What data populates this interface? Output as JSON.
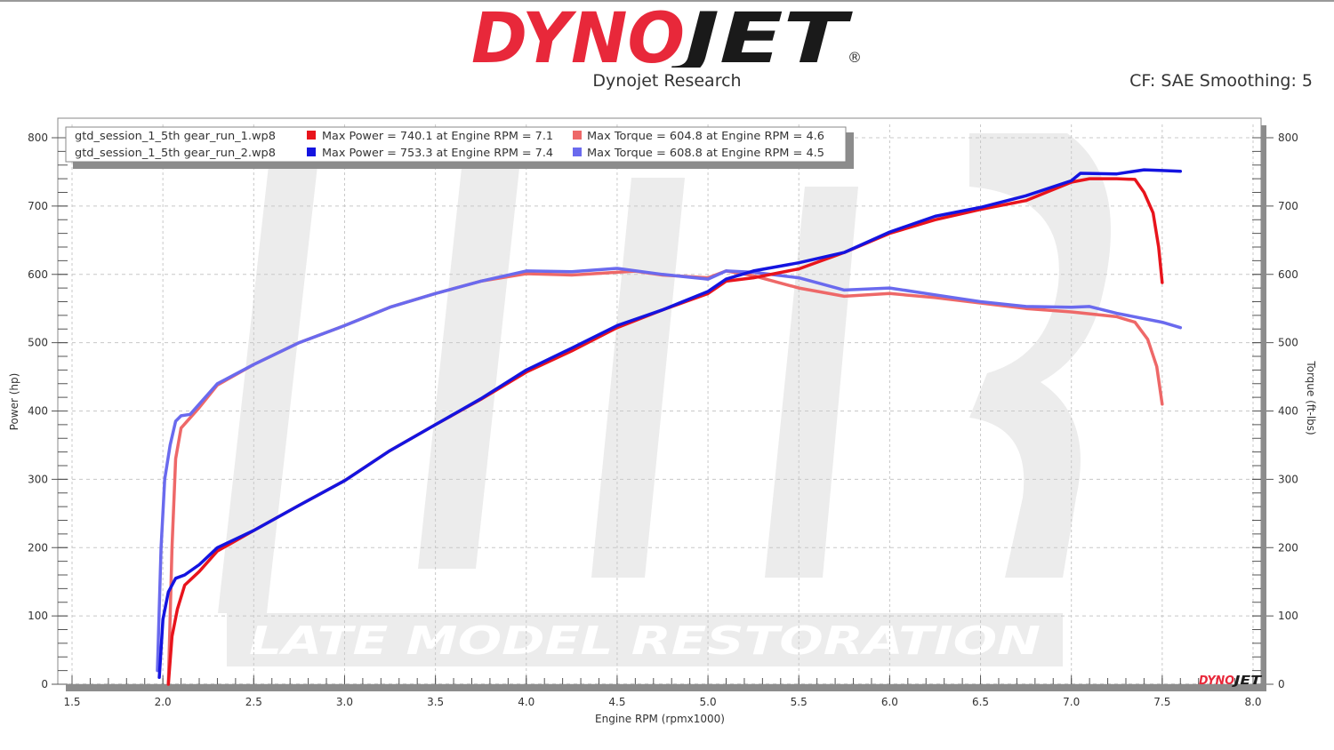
{
  "header": {
    "brand_left": "DYNO",
    "brand_right": "JET",
    "registered": "®",
    "subtitle": "Dynojet Research",
    "correction": "CF: SAE Smoothing: 5"
  },
  "colors": {
    "brand_red": "#e8283a",
    "brand_black": "#1a1a1a",
    "run1_power": "#e8141c",
    "run2_power": "#1414e0",
    "run1_torque": "#ee6868",
    "run2_torque": "#6a6aee"
  },
  "legend": {
    "rows": [
      {
        "file": "gtd_session_1_5th gear_run_1.wp8",
        "power": "Max Power = 740.1 at Engine RPM = 7.1",
        "torque": "Max Torque = 604.8 at Engine RPM = 4.6"
      },
      {
        "file": "gtd_session_1_5th gear_run_2.wp8",
        "power": "Max Power = 753.3 at Engine RPM = 7.4",
        "torque": "Max Torque = 608.8 at Engine RPM = 4.5"
      }
    ]
  },
  "watermark": {
    "text": "LATE MODEL RESTORATION",
    "mark": "LMR"
  },
  "corner_logo": {
    "left": "DYNO",
    "right": "JET"
  },
  "chart_data": {
    "type": "line",
    "title": "Dynojet Research",
    "subtitle": "CF: SAE Smoothing: 5",
    "xlabel": "Engine RPM (rpmx1000)",
    "ylabel": "Power (hp)",
    "ylabel_right": "Torque (ft-lbs)",
    "xlim": [
      1.5,
      8.0
    ],
    "ylim": [
      0,
      800
    ],
    "ylim_right": [
      0,
      800
    ],
    "x_ticks": [
      "1.5",
      "2.0",
      "2.5",
      "3.0",
      "3.5",
      "4.0",
      "4.5",
      "5.0",
      "5.5",
      "6.0",
      "6.5",
      "7.0",
      "7.5",
      "8.0"
    ],
    "y_ticks": [
      "0",
      "100",
      "200",
      "300",
      "400",
      "500",
      "600",
      "700",
      "800"
    ],
    "grid": true,
    "legend_position": "top-left",
    "series": [
      {
        "name": "gtd_session_1_5th gear_run_1.wp8 Power",
        "axis": "left",
        "color": "#e8141c",
        "x": [
          2.03,
          2.05,
          2.08,
          2.12,
          2.2,
          2.3,
          2.5,
          2.75,
          3.0,
          3.25,
          3.5,
          3.75,
          4.0,
          4.25,
          4.5,
          4.75,
          5.0,
          5.1,
          5.25,
          5.5,
          5.75,
          6.0,
          6.25,
          6.5,
          6.75,
          7.0,
          7.1,
          7.25,
          7.35,
          7.4,
          7.45,
          7.48,
          7.5
        ],
        "values": [
          0,
          70,
          110,
          145,
          165,
          195,
          225,
          262,
          298,
          342,
          380,
          417,
          457,
          488,
          522,
          548,
          572,
          590,
          595,
          608,
          632,
          660,
          680,
          695,
          708,
          735,
          740,
          740,
          739,
          720,
          690,
          640,
          588
        ]
      },
      {
        "name": "gtd_session_1_5th gear_run_2.wp8 Power",
        "axis": "left",
        "color": "#1414e0",
        "x": [
          1.98,
          2.0,
          2.03,
          2.07,
          2.12,
          2.2,
          2.3,
          2.5,
          2.75,
          3.0,
          3.25,
          3.5,
          3.75,
          4.0,
          4.25,
          4.5,
          4.75,
          5.0,
          5.1,
          5.25,
          5.5,
          5.75,
          6.0,
          6.25,
          6.5,
          6.75,
          7.0,
          7.05,
          7.25,
          7.4,
          7.5,
          7.6
        ],
        "values": [
          10,
          95,
          135,
          155,
          160,
          175,
          200,
          225,
          262,
          298,
          342,
          380,
          418,
          460,
          492,
          525,
          548,
          575,
          593,
          605,
          617,
          632,
          662,
          685,
          698,
          715,
          737,
          748,
          747,
          753,
          752,
          751
        ]
      },
      {
        "name": "gtd_session_1_5th gear_run_1.wp8 Torque",
        "axis": "right",
        "color": "#ee6868",
        "x": [
          2.03,
          2.05,
          2.07,
          2.1,
          2.15,
          2.2,
          2.3,
          2.5,
          2.75,
          3.0,
          3.25,
          3.5,
          3.75,
          4.0,
          4.25,
          4.5,
          4.6,
          4.75,
          5.0,
          5.1,
          5.25,
          5.5,
          5.75,
          6.0,
          6.25,
          6.5,
          6.75,
          7.0,
          7.25,
          7.35,
          7.42,
          7.47,
          7.5
        ],
        "values": [
          0,
          200,
          330,
          375,
          390,
          405,
          438,
          468,
          500,
          525,
          552,
          572,
          590,
          601,
          599,
          603,
          604.8,
          599,
          595,
          605,
          598,
          580,
          568,
          572,
          566,
          558,
          550,
          545,
          538,
          530,
          505,
          465,
          410
        ]
      },
      {
        "name": "gtd_session_1_5th gear_run_2.wp8 Torque",
        "axis": "right",
        "color": "#6a6aee",
        "x": [
          1.97,
          1.99,
          2.01,
          2.04,
          2.07,
          2.1,
          2.15,
          2.2,
          2.3,
          2.5,
          2.75,
          3.0,
          3.25,
          3.5,
          3.75,
          4.0,
          4.25,
          4.5,
          4.75,
          5.0,
          5.1,
          5.25,
          5.5,
          5.75,
          6.0,
          6.25,
          6.5,
          6.75,
          7.0,
          7.1,
          7.25,
          7.5,
          7.6
        ],
        "values": [
          20,
          200,
          300,
          350,
          385,
          393,
          395,
          410,
          440,
          468,
          500,
          525,
          552,
          572,
          590,
          605,
          604,
          608.8,
          600,
          593,
          605,
          603,
          595,
          577,
          580,
          570,
          560,
          553,
          552,
          553,
          543,
          530,
          522
        ]
      }
    ]
  }
}
